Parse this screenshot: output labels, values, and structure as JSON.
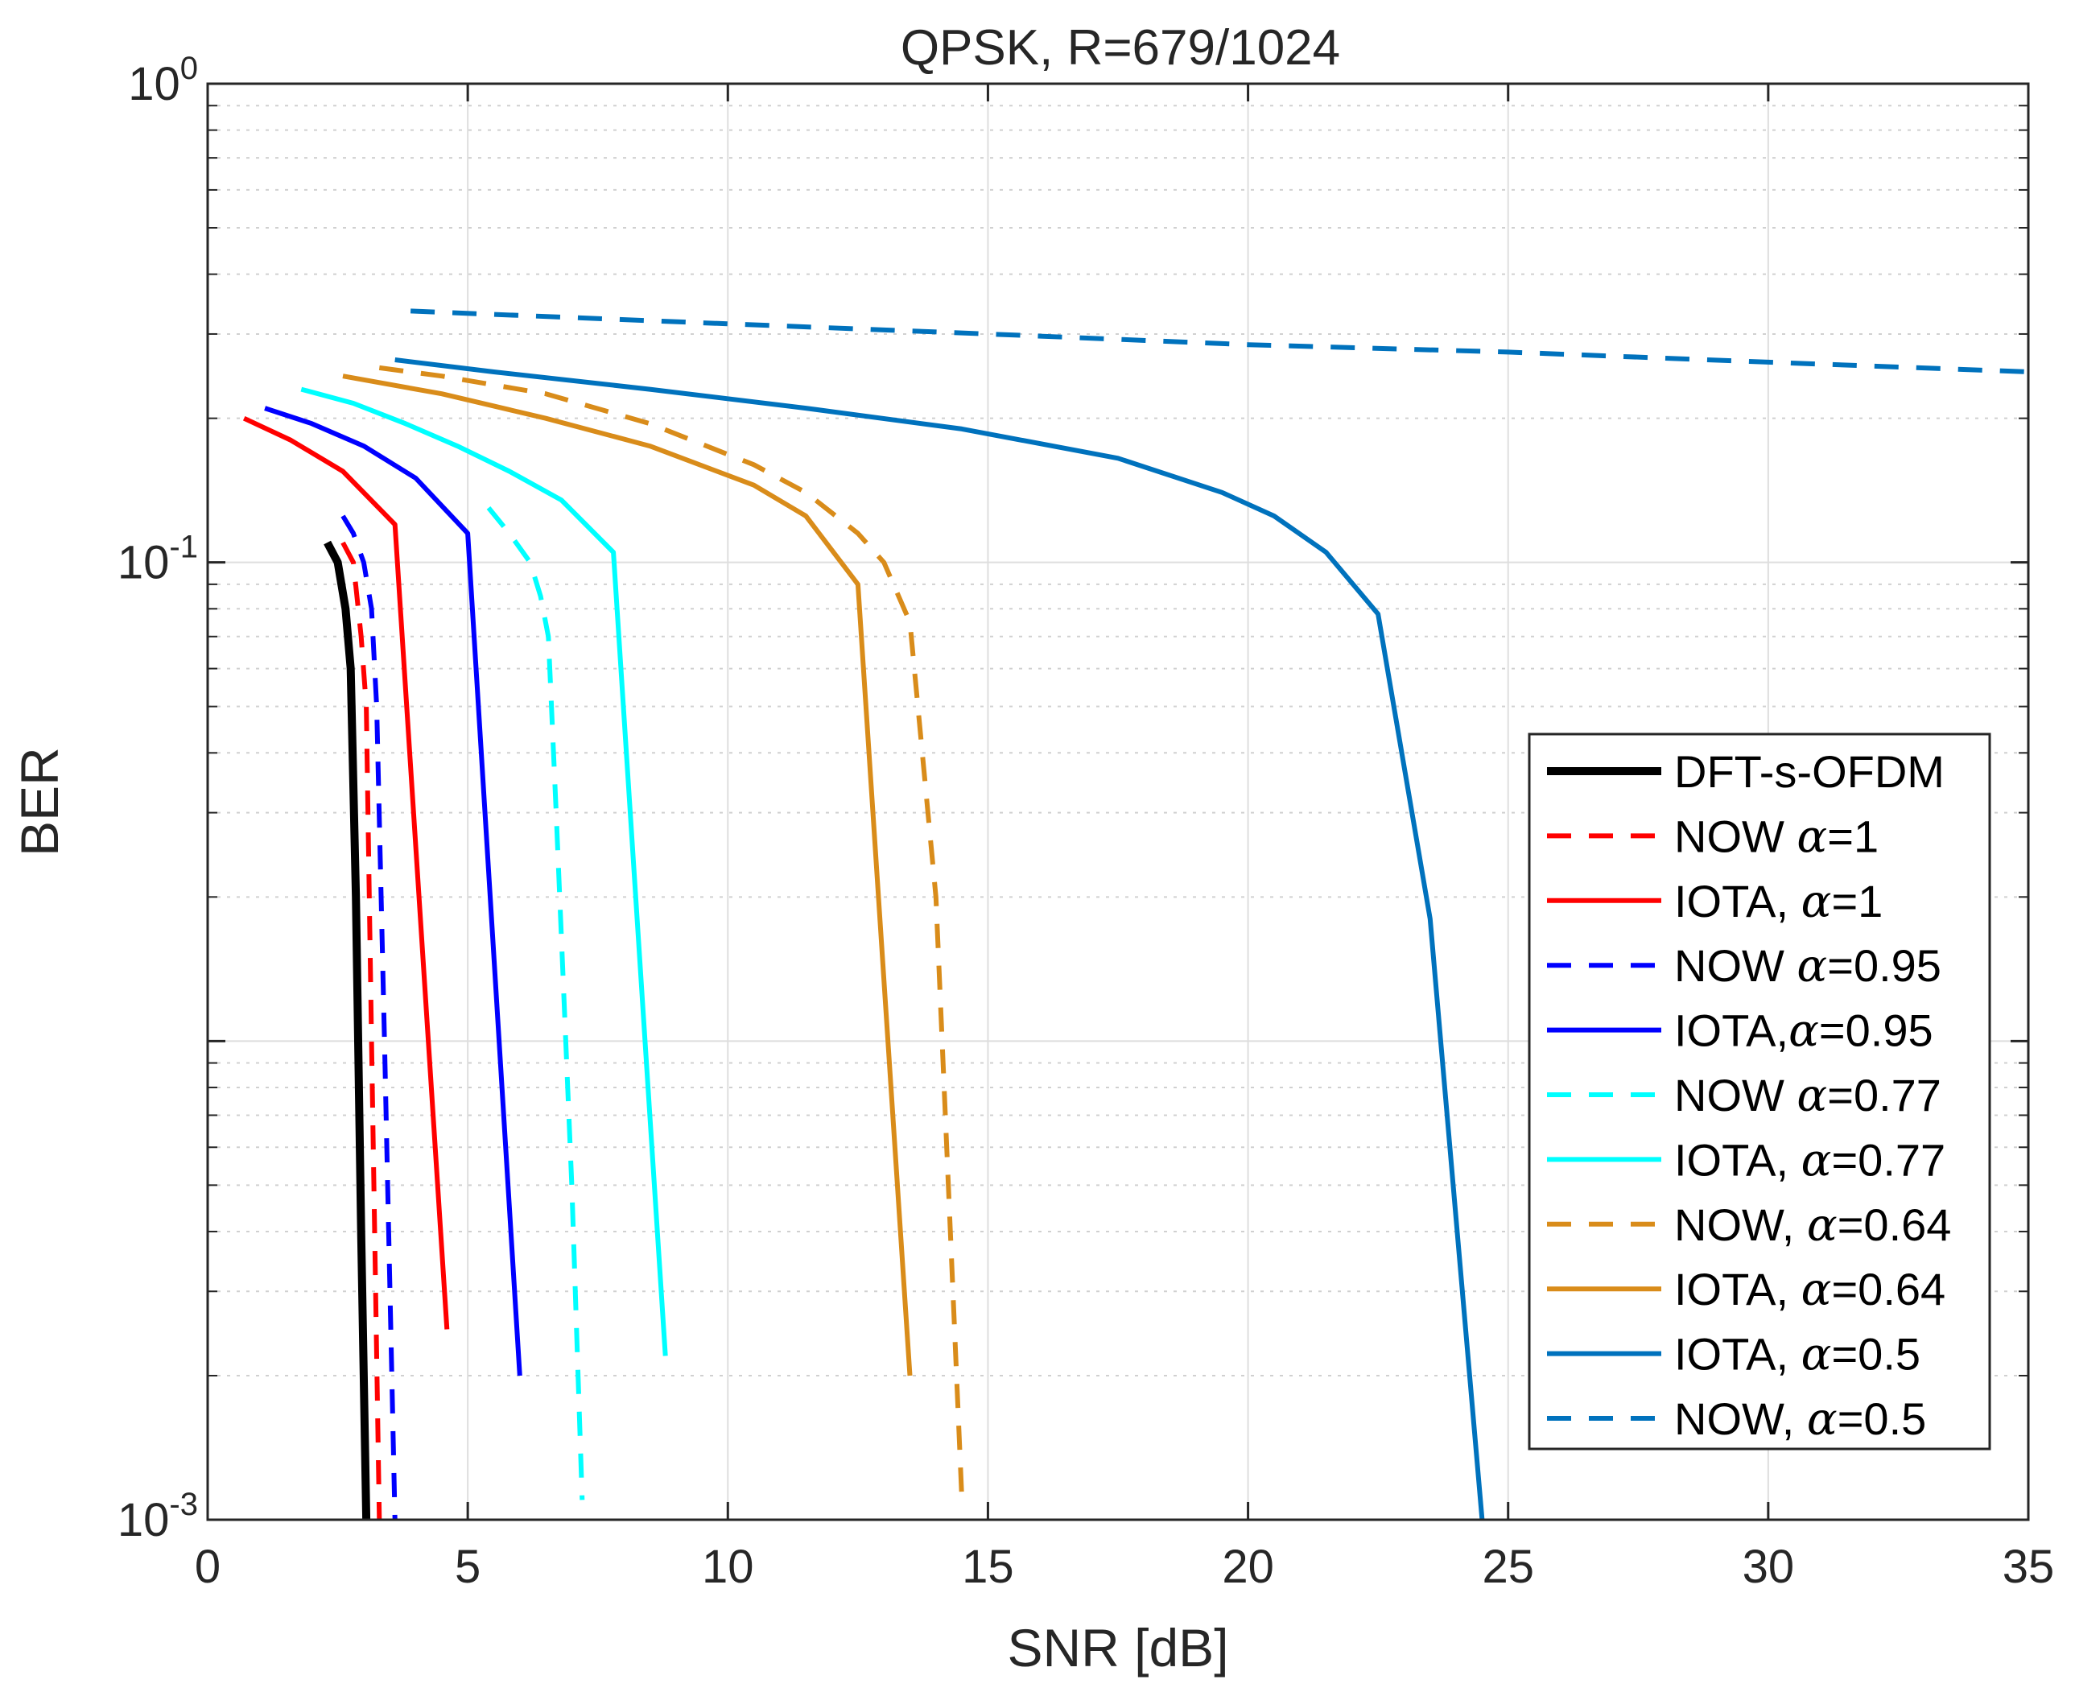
{
  "chart_data": {
    "type": "line",
    "title": "QPSK, R=679/1024",
    "xlabel": "SNR [dB]",
    "ylabel": "BER",
    "xlim": [
      0,
      35
    ],
    "ylim": [
      0.001,
      1
    ],
    "yscale": "log",
    "grid": true,
    "legend_position": "bottom-right",
    "x_ticks": [
      {
        "value": 0,
        "label": "0"
      },
      {
        "value": 5,
        "label": "5"
      },
      {
        "value": 10,
        "label": "10"
      },
      {
        "value": 15,
        "label": "15"
      },
      {
        "value": 20,
        "label": "20"
      },
      {
        "value": 25,
        "label": "25"
      },
      {
        "value": 30,
        "label": "30"
      },
      {
        "value": 35,
        "label": "35"
      }
    ],
    "y_ticks": [
      {
        "value": 1,
        "base": "10",
        "exp": "0"
      },
      {
        "value": 0.1,
        "base": "10",
        "exp": "-1"
      },
      {
        "value": 0.001,
        "base": "10",
        "exp": "-3"
      }
    ],
    "series": [
      {
        "name": "DFT-s-OFDM",
        "name_prefix": "DFT-s-OFDM",
        "alpha": "",
        "color": "#000000",
        "dash": "solid",
        "width": 10,
        "x": [
          2.3,
          2.5,
          2.65,
          2.75,
          2.85,
          2.95,
          3.05
        ],
        "y": [
          0.11,
          0.1,
          0.08,
          0.06,
          0.02,
          0.004,
          0.001
        ]
      },
      {
        "name": "NOW α=1",
        "name_prefix": "NOW ",
        "alpha": "=1",
        "color": "#ff0000",
        "dash": "dashed",
        "width": 6,
        "x": [
          2.6,
          2.8,
          2.95,
          3.05,
          3.15,
          3.3
        ],
        "y": [
          0.11,
          0.1,
          0.07,
          0.05,
          0.01,
          0.001
        ]
      },
      {
        "name": "IOTA, α=1",
        "name_prefix": "IOTA, ",
        "alpha": "=1",
        "color": "#ff0000",
        "dash": "solid",
        "width": 6,
        "x": [
          0.7,
          1.6,
          2.6,
          3.6,
          4.6
        ],
        "y": [
          0.2,
          0.18,
          0.155,
          0.12,
          0.0025
        ]
      },
      {
        "name": "NOW α=0.95",
        "name_prefix": "NOW ",
        "alpha": "=0.95",
        "color": "#0000ff",
        "dash": "dashed",
        "width": 6,
        "x": [
          2.6,
          2.8,
          3.0,
          3.15,
          3.25,
          3.4,
          3.6
        ],
        "y": [
          0.125,
          0.115,
          0.1,
          0.08,
          0.05,
          0.01,
          0.001
        ]
      },
      {
        "name": "IOTA,α=0.95",
        "name_prefix": "IOTA,",
        "alpha": "=0.95",
        "color": "#0000ff",
        "dash": "solid",
        "width": 6,
        "x": [
          1.1,
          2.0,
          3.0,
          4.0,
          5.0,
          6.0
        ],
        "y": [
          0.21,
          0.195,
          0.175,
          0.15,
          0.115,
          0.002
        ]
      },
      {
        "name": "NOW α=0.77",
        "name_prefix": "NOW ",
        "alpha": "=0.77",
        "color": "#00ffff",
        "dash": "dashed",
        "width": 6,
        "x": [
          5.4,
          5.8,
          6.2,
          6.4,
          6.55,
          6.7,
          7.0,
          7.2
        ],
        "y": [
          0.13,
          0.115,
          0.1,
          0.085,
          0.07,
          0.03,
          0.005,
          0.0011
        ]
      },
      {
        "name": "IOTA, α=0.77",
        "name_prefix": "IOTA, ",
        "alpha": "=0.77",
        "color": "#00ffff",
        "dash": "solid",
        "width": 6,
        "x": [
          1.8,
          2.8,
          3.8,
          4.8,
          5.8,
          6.8,
          7.8,
          8.8
        ],
        "y": [
          0.23,
          0.215,
          0.195,
          0.175,
          0.155,
          0.135,
          0.105,
          0.0022
        ]
      },
      {
        "name": "NOW, α=0.64",
        "name_prefix": "NOW, ",
        "alpha": "=0.64",
        "color": "#d95319",
        "stroke": "#d98c1a",
        "dash": "dashed",
        "width": 6,
        "x": [
          3.3,
          4.5,
          6.5,
          8.5,
          10.5,
          11.5,
          12.5,
          13.0,
          13.5,
          14.0,
          14.5
        ],
        "y": [
          0.255,
          0.245,
          0.225,
          0.195,
          0.16,
          0.14,
          0.115,
          0.1,
          0.075,
          0.02,
          0.0011
        ]
      },
      {
        "name": "IOTA, α=0.64",
        "name_prefix": "IOTA, ",
        "alpha": "=0.64",
        "color": "#d98c1a",
        "dash": "solid",
        "width": 6,
        "x": [
          2.6,
          4.5,
          6.5,
          8.5,
          10.5,
          11.5,
          12.5,
          13.5
        ],
        "y": [
          0.245,
          0.225,
          0.2,
          0.175,
          0.145,
          0.125,
          0.09,
          0.002
        ]
      },
      {
        "name": "IOTA, α=0.5",
        "name_prefix": "IOTA, ",
        "alpha": "=0.5",
        "color": "#0072bd",
        "dash": "solid",
        "width": 6,
        "x": [
          3.6,
          5.5,
          8.5,
          11.5,
          14.5,
          17.5,
          19.5,
          20.5,
          21.5,
          22.5,
          23.5,
          24.5
        ],
        "y": [
          0.265,
          0.25,
          0.23,
          0.21,
          0.19,
          0.165,
          0.14,
          0.125,
          0.105,
          0.078,
          0.018,
          0.001
        ]
      },
      {
        "name": "NOW, α=0.5",
        "name_prefix": "NOW, ",
        "alpha": "=0.5",
        "color": "#0072bd",
        "dash": "dashed",
        "width": 6,
        "x": [
          3.9,
          10.0,
          15.0,
          20.0,
          25.0,
          30.0,
          35.0
        ],
        "y": [
          0.335,
          0.315,
          0.3,
          0.285,
          0.275,
          0.262,
          0.25
        ]
      }
    ]
  }
}
